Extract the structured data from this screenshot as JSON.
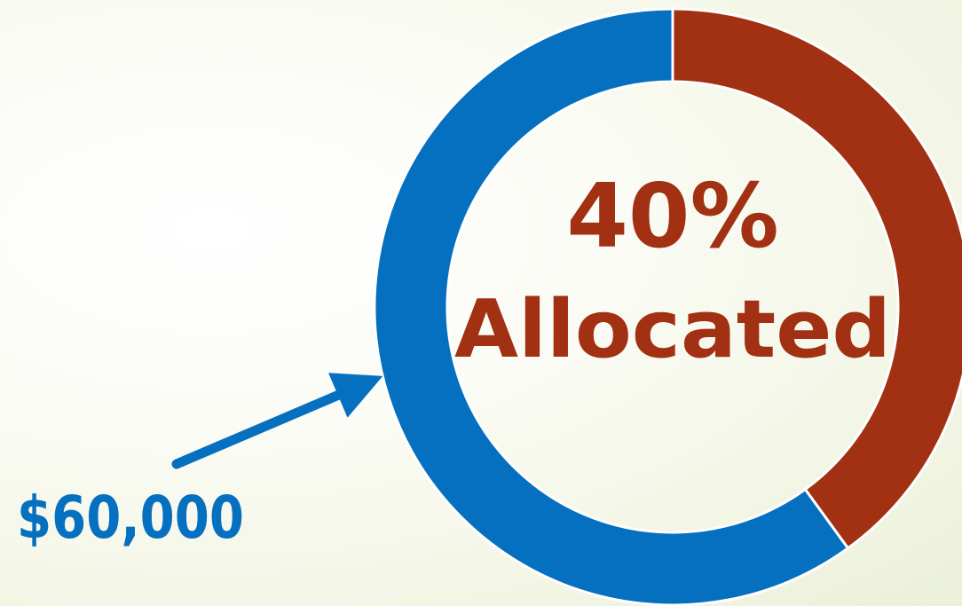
{
  "chart_data": {
    "type": "pie",
    "donut": true,
    "slices": [
      {
        "name": "",
        "value": 40,
        "color": "#a23012"
      },
      {
        "name": "",
        "value": 60,
        "color": "#0670c0"
      }
    ],
    "center_label": {
      "percent": "40%",
      "text": "Allocated",
      "color": "#a23012"
    },
    "annotation": {
      "text": "$60,000",
      "color": "#0670c0"
    },
    "legend": "none"
  }
}
